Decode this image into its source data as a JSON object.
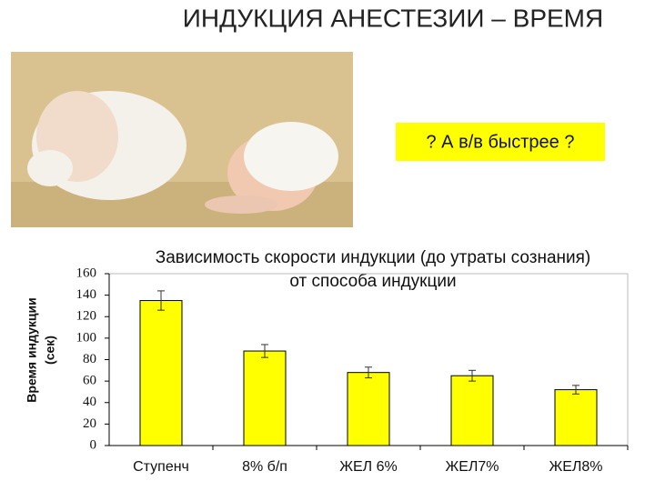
{
  "title": "ИНДУКЦИЯ  АНЕСТЕЗИИ – ВРЕМЯ",
  "callout": "? А в/в быстрее ?",
  "chart_data": {
    "type": "bar",
    "title": [
      "Зависимость скорости индукции (до утраты сознания)",
      "от способа индукции"
    ],
    "y_label": [
      "Время индукции",
      "(сек)"
    ],
    "categories": [
      "Ступенч",
      "8% б/п",
      "ЖЕЛ 6%",
      "ЖЕЛ7%",
      "ЖЕЛ8%"
    ],
    "values": [
      135,
      88,
      68,
      65,
      52
    ],
    "errors": [
      9,
      6,
      5,
      5,
      4
    ],
    "color": "#ffff00",
    "ylim": [
      0,
      160
    ],
    "yticks": [
      0,
      20,
      40,
      60,
      80,
      100,
      120,
      140,
      160
    ],
    "grid": false
  }
}
